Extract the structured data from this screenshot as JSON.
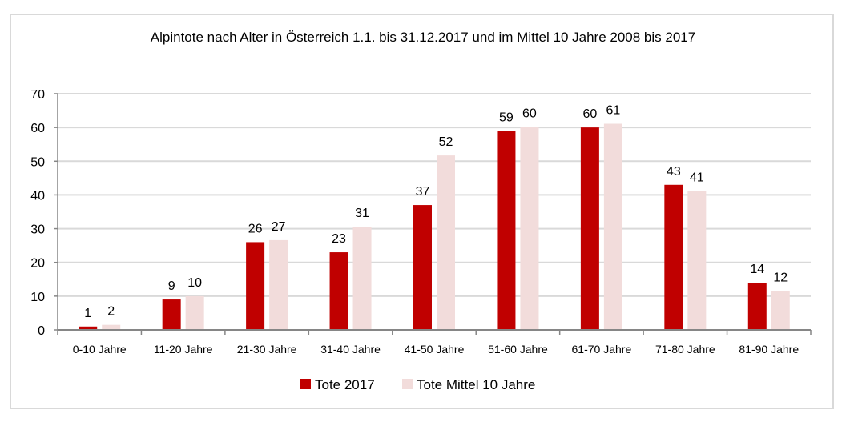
{
  "chart_data": {
    "type": "bar",
    "title": "Alpintote nach Alter in Österreich 1.1. bis 31.12.2017 und im Mittel 10 Jahre 2008 bis 2017",
    "xlabel": "",
    "ylabel": "",
    "ylim": [
      0,
      70
    ],
    "yticks": [
      0,
      10,
      20,
      30,
      40,
      50,
      60,
      70
    ],
    "ytick_labels": [
      "0",
      "10",
      "20",
      "30",
      "40",
      "50",
      "60",
      "70"
    ],
    "grid": true,
    "legend_position": "bottom",
    "categories": [
      "0-10 Jahre",
      "11-20 Jahre",
      "21-30 Jahre",
      "31-40 Jahre",
      "41-50 Jahre",
      "51-60 Jahre",
      "61-70 Jahre",
      "71-80 Jahre",
      "81-90 Jahre"
    ],
    "series": [
      {
        "name": "Tote 2017",
        "color": "#c00000",
        "values": [
          1,
          9,
          26,
          23,
          37,
          59,
          60,
          43,
          14
        ],
        "labels": [
          "1",
          "9",
          "26",
          "23",
          "37",
          "59",
          "60",
          "43",
          "14"
        ]
      },
      {
        "name": "Tote Mittel 10 Jahre",
        "color": "#f2dcdb",
        "values": [
          1.5,
          10,
          26.6,
          30.6,
          51.7,
          60.2,
          61.1,
          41.2,
          11.5
        ],
        "labels": [
          "2",
          "10",
          "27",
          "31",
          "52",
          "60",
          "61",
          "41",
          "12"
        ]
      }
    ]
  }
}
